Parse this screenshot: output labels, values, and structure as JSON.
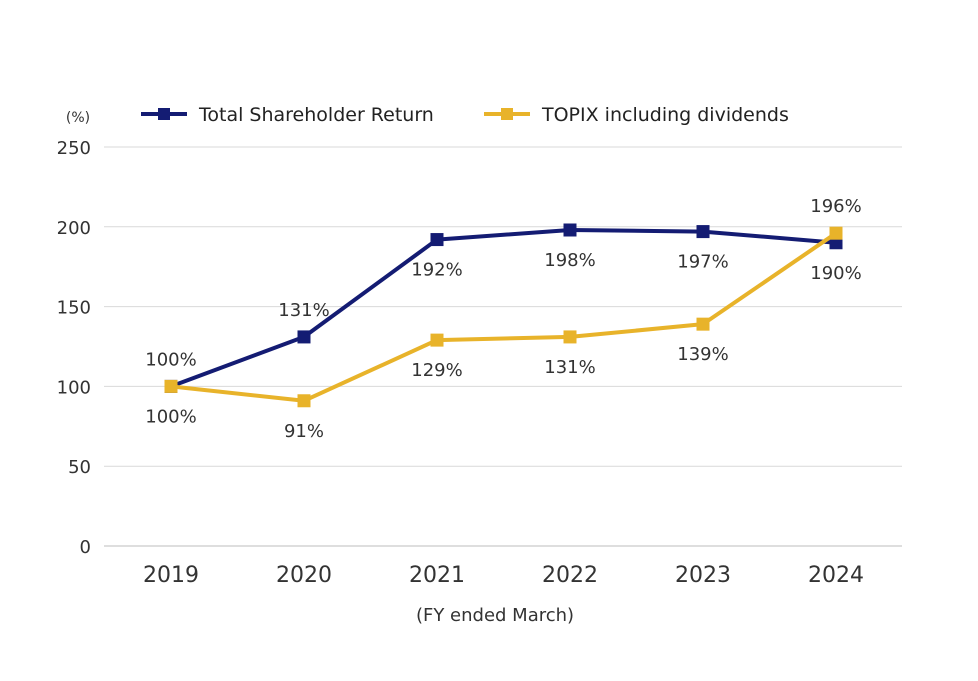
{
  "chart_data": {
    "type": "line",
    "unit_label": "(%)",
    "xlabel": "(FY ended March)",
    "ylabel": "",
    "categories": [
      "2019",
      "2020",
      "2021",
      "2022",
      "2023",
      "2024"
    ],
    "ylim": [
      0,
      250
    ],
    "yticks": [
      0,
      50,
      100,
      150,
      200,
      250
    ],
    "grid": true,
    "legend_position": "top",
    "series": [
      {
        "name": "Total Shareholder Return",
        "color": "#141c73",
        "values": [
          100,
          131,
          192,
          198,
          197,
          190
        ],
        "labels": [
          "100%",
          "131%",
          "192%",
          "198%",
          "197%",
          "190%"
        ],
        "label_side": [
          "above",
          "above",
          "below",
          "below",
          "below",
          "below"
        ]
      },
      {
        "name": "TOPIX including dividends",
        "color": "#e8b32a",
        "values": [
          100,
          91,
          129,
          131,
          139,
          196
        ],
        "labels": [
          "100%",
          "91%",
          "129%",
          "131%",
          "139%",
          "196%"
        ],
        "label_side": [
          "below",
          "below",
          "below",
          "below",
          "below",
          "above"
        ]
      }
    ]
  }
}
